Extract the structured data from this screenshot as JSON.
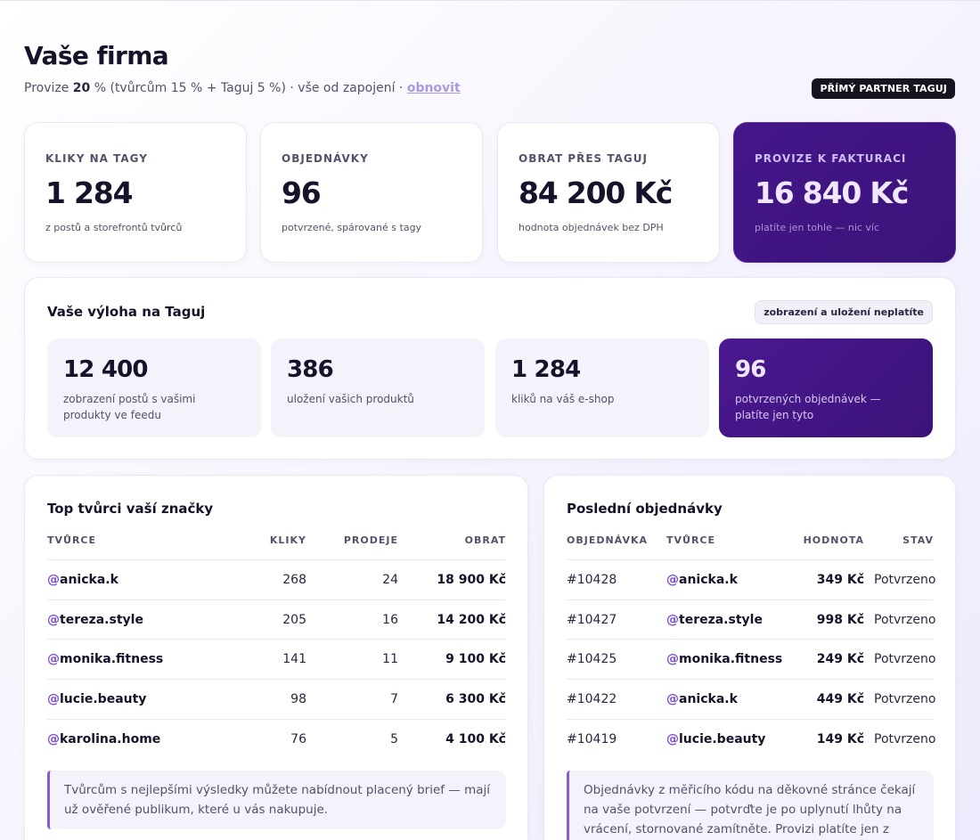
{
  "header": {
    "title": "Vaše firma",
    "subtitle_prefix": "Provize ",
    "subtitle_commission": "20",
    "subtitle_rest": " % (tvůrcům 15 % + Taguj 5 %) · vše od zapojení · ",
    "refresh_link": "obnovit",
    "partner_badge": "PŘÍMÝ PARTNER TAGUJ"
  },
  "kpis": [
    {
      "label": "KLIKY NA TAGY",
      "value": "1 284",
      "hint": "z postů a storefrontů tvůrců"
    },
    {
      "label": "OBJEDNÁVKY",
      "value": "96",
      "hint": "potvrzené, spárované s tagy"
    },
    {
      "label": "OBRAT PŘES TAGUJ",
      "value": "84 200 Kč",
      "hint": "hodnota objednávek bez DPH"
    },
    {
      "label": "PROVIZE K FAKTURACI",
      "value": "16 840 Kč",
      "hint": "platíte jen tohle — nic víc"
    }
  ],
  "showcase": {
    "title": "Vaše výloha na Taguj",
    "badge": "zobrazení a uložení neplatíte",
    "stats": [
      {
        "value": "12 400",
        "desc": "zobrazení postů s vašimi produkty ve feedu"
      },
      {
        "value": "386",
        "desc": "uložení vašich produktů"
      },
      {
        "value": "1 284",
        "desc": "kliků na váš e-shop"
      },
      {
        "value": "96",
        "desc": "potvrzených objednávek — platíte jen tyto"
      }
    ]
  },
  "creators": {
    "title": "Top tvůrci vaší značky",
    "columns": [
      "TVŮRCE",
      "KLIKY",
      "PRODEJE",
      "OBRAT"
    ],
    "rows": [
      {
        "handle": "anicka.k",
        "clicks": "268",
        "sales": "24",
        "revenue": "18 900 Kč"
      },
      {
        "handle": "tereza.style",
        "clicks": "205",
        "sales": "16",
        "revenue": "14 200 Kč"
      },
      {
        "handle": "monika.fitness",
        "clicks": "141",
        "sales": "11",
        "revenue": "9 100 Kč"
      },
      {
        "handle": "lucie.beauty",
        "clicks": "98",
        "sales": "7",
        "revenue": "6 300 Kč"
      },
      {
        "handle": "karolina.home",
        "clicks": "76",
        "sales": "5",
        "revenue": "4 100 Kč"
      }
    ],
    "note": "Tvůrcům s nejlepšími výsledky můžete nabídnout placený brief — mají už ověřené publikum, které u vás nakupuje."
  },
  "orders": {
    "title": "Poslední objednávky",
    "columns": [
      "OBJEDNÁVKA",
      "TVŮRCE",
      "HODNOTA",
      "STAV"
    ],
    "rows": [
      {
        "id": "#10428",
        "handle": "anicka.k",
        "value": "349 Kč",
        "status": "Potvrzeno"
      },
      {
        "id": "#10427",
        "handle": "tereza.style",
        "value": "998 Kč",
        "status": "Potvrzeno"
      },
      {
        "id": "#10425",
        "handle": "monika.fitness",
        "value": "249 Kč",
        "status": "Potvrzeno"
      },
      {
        "id": "#10422",
        "handle": "anicka.k",
        "value": "449 Kč",
        "status": "Potvrzeno"
      },
      {
        "id": "#10419",
        "handle": "lucie.beauty",
        "value": "149 Kč",
        "status": "Potvrzeno"
      }
    ],
    "note": "Objednávky z měřicího kódu na děkovné stránce čekají na vaše potvrzení — potvrďte je po uplynutí lhůty na vrácení, stornované zamítněte. Provizi platíte jen z potvrzených."
  }
}
